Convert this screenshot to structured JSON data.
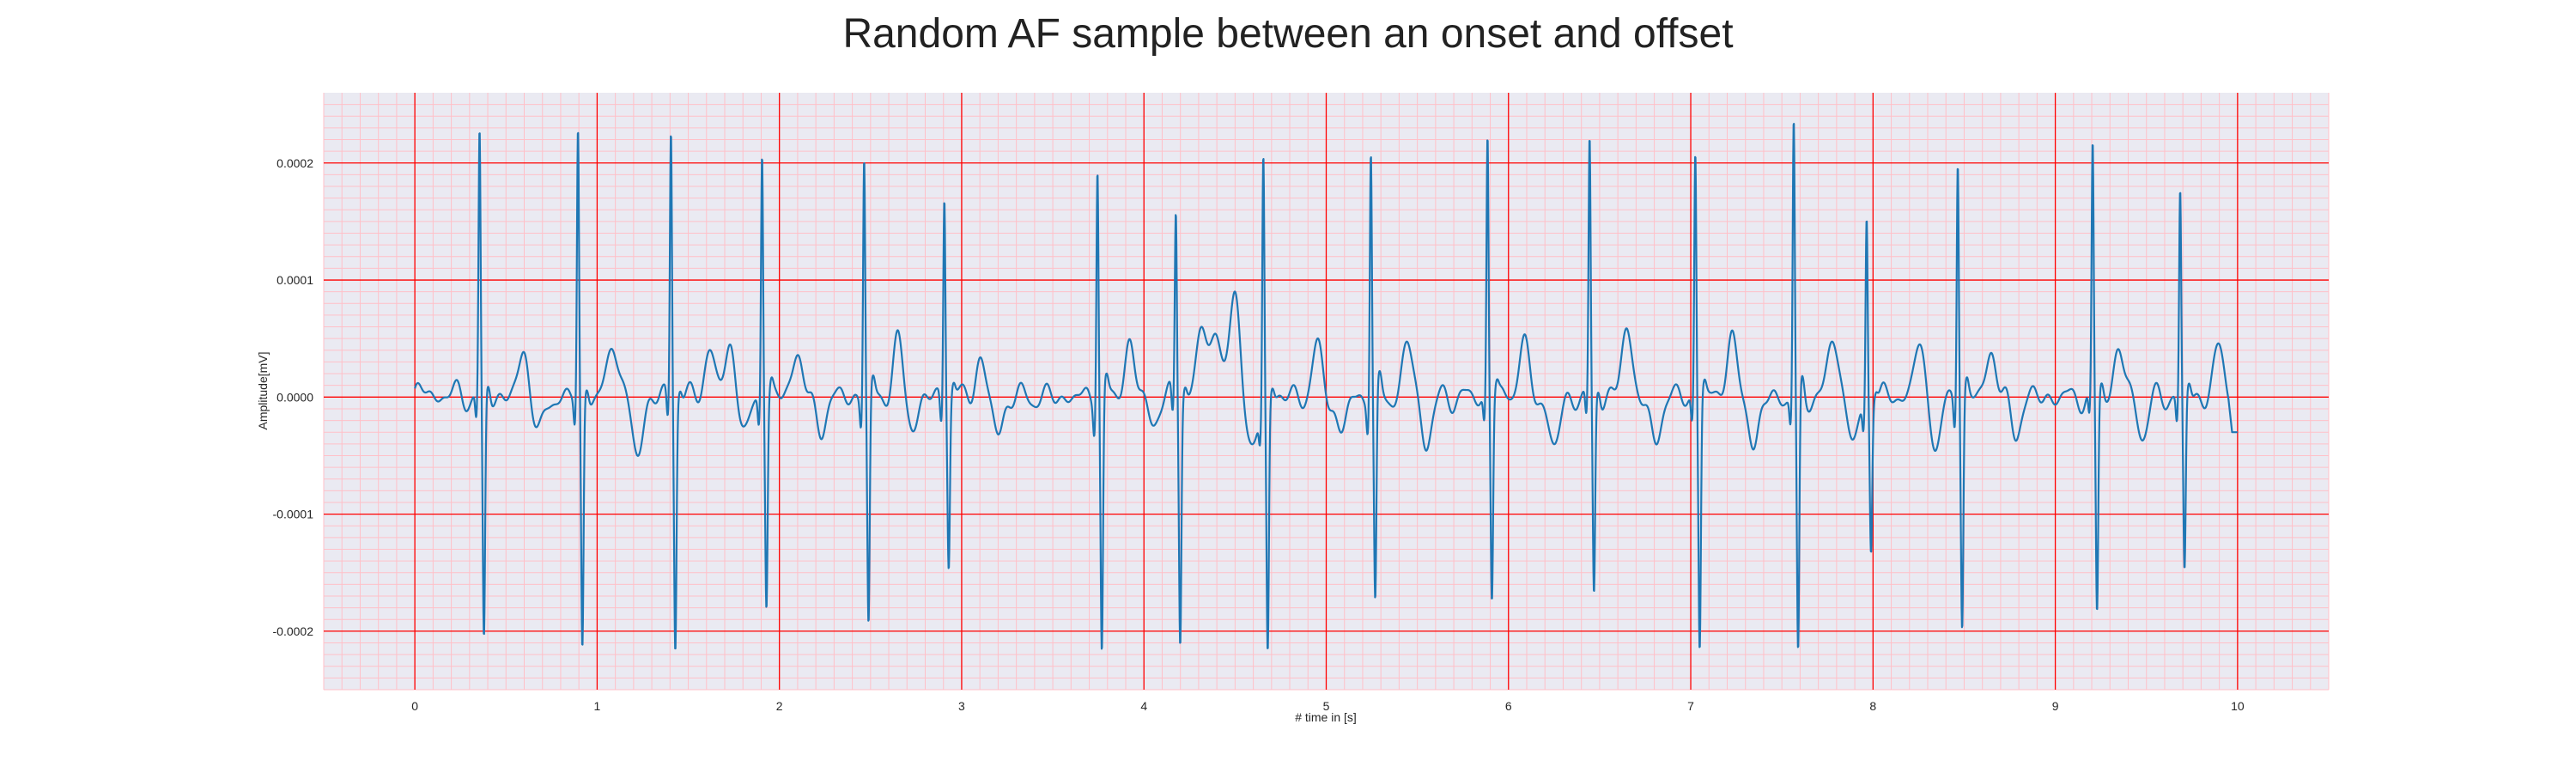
{
  "chart_data": {
    "type": "line",
    "title": "Random AF sample between an onset and offset",
    "xlabel": "# time in [s]",
    "ylabel": "Amplitude[mV]",
    "xlim": [
      -0.5,
      10.5
    ],
    "ylim": [
      -0.00025,
      0.00026
    ],
    "xticks": [
      0,
      1,
      2,
      3,
      4,
      5,
      6,
      7,
      8,
      9,
      10
    ],
    "xtick_labels": [
      "0",
      "1",
      "2",
      "3",
      "4",
      "5",
      "6",
      "7",
      "8",
      "9",
      "10"
    ],
    "yticks": [
      0.0002,
      0.0001,
      0.0,
      -0.0001,
      -0.0002
    ],
    "ytick_labels": [
      "0.0002",
      "0.0001",
      "0.0000",
      "-0.0001",
      "-0.0002"
    ],
    "grid": true,
    "minor_grid": true,
    "beats": [
      {
        "t": 0.355,
        "r": 0.000222,
        "s": -0.000213
      },
      {
        "t": 0.895,
        "r": 0.000228,
        "s": -0.000218
      },
      {
        "t": 1.405,
        "r": 0.00023,
        "s": -0.00021
      },
      {
        "t": 1.905,
        "r": 0.000215,
        "s": -0.000172
      },
      {
        "t": 2.465,
        "r": 0.000208,
        "s": -0.000198
      },
      {
        "t": 2.905,
        "r": 0.000177,
        "s": -0.00014
      },
      {
        "t": 3.745,
        "r": 0.000204,
        "s": -0.00022
      },
      {
        "t": 4.175,
        "r": 0.00016,
        "s": -0.000203
      },
      {
        "t": 4.655,
        "r": 0.000215,
        "s": -0.000215
      },
      {
        "t": 5.245,
        "r": 0.000215,
        "s": -0.000182
      },
      {
        "t": 5.885,
        "r": 0.000222,
        "s": -0.00017
      },
      {
        "t": 6.445,
        "r": 0.000215,
        "s": -0.000172
      },
      {
        "t": 7.025,
        "r": 0.00021,
        "s": -0.000213
      },
      {
        "t": 7.565,
        "r": 0.000235,
        "s": -0.000228
      },
      {
        "t": 7.965,
        "r": 0.000158,
        "s": -0.000125
      },
      {
        "t": 8.465,
        "r": 0.00021,
        "s": -0.000195
      },
      {
        "t": 9.205,
        "r": 0.00021,
        "s": -0.000187
      },
      {
        "t": 9.685,
        "r": 0.000175,
        "s": -0.000152
      }
    ],
    "waves": [
      {
        "t": 0.06,
        "a": 6e-06
      },
      {
        "t": 0.22,
        "a": 4e-06
      },
      {
        "t": 0.6,
        "a": 4e-05
      },
      {
        "t": 0.68,
        "a": -3.4e-05
      },
      {
        "t": 1.09,
        "a": 5e-05
      },
      {
        "t": 1.22,
        "a": -5e-05
      },
      {
        "t": 1.62,
        "a": 4.2e-05
      },
      {
        "t": 1.73,
        "a": 4e-05
      },
      {
        "t": 1.82,
        "a": -3e-05
      },
      {
        "t": 2.1,
        "a": 4e-05
      },
      {
        "t": 2.22,
        "a": -2.8e-05
      },
      {
        "t": 2.65,
        "a": 4.5e-05
      },
      {
        "t": 2.73,
        "a": -2.5e-05
      },
      {
        "t": 3.1,
        "a": 3e-05
      },
      {
        "t": 3.2,
        "a": -3e-05
      },
      {
        "t": 3.92,
        "a": 4.5e-05
      },
      {
        "t": 4.05,
        "a": -2e-05
      },
      {
        "t": 4.32,
        "a": 6e-05
      },
      {
        "t": 4.4,
        "a": 5.8e-05
      },
      {
        "t": 4.5,
        "a": 8.5e-05
      },
      {
        "t": 4.6,
        "a": -5e-05
      },
      {
        "t": 4.95,
        "a": 4e-05
      },
      {
        "t": 5.08,
        "a": -3e-05
      },
      {
        "t": 5.45,
        "a": 4.5e-05
      },
      {
        "t": 5.55,
        "a": -4e-05
      },
      {
        "t": 6.08,
        "a": 4.5e-05
      },
      {
        "t": 6.25,
        "a": -4.5e-05
      },
      {
        "t": 6.65,
        "a": 6e-05
      },
      {
        "t": 6.8,
        "a": -4e-05
      },
      {
        "t": 7.22,
        "a": 5e-05
      },
      {
        "t": 7.35,
        "a": -4e-05
      },
      {
        "t": 7.78,
        "a": 5e-05
      },
      {
        "t": 7.9,
        "a": -4e-05
      },
      {
        "t": 8.25,
        "a": 4.2e-05
      },
      {
        "t": 8.35,
        "a": -4e-05
      },
      {
        "t": 8.65,
        "a": 4e-05
      },
      {
        "t": 8.78,
        "a": -3e-05
      },
      {
        "t": 9.35,
        "a": 4e-05
      },
      {
        "t": 9.48,
        "a": -3e-05
      },
      {
        "t": 9.9,
        "a": 4e-05
      }
    ],
    "end": {
      "t": 10.0,
      "v": -3e-05
    }
  },
  "colors": {
    "figure_bg": "#ffffff",
    "axes_bg": "#eaeaf2",
    "grid_major": "#ff0000",
    "grid_minor": "#ffc0c8",
    "line": "#1f77b4",
    "text": "#262626"
  }
}
